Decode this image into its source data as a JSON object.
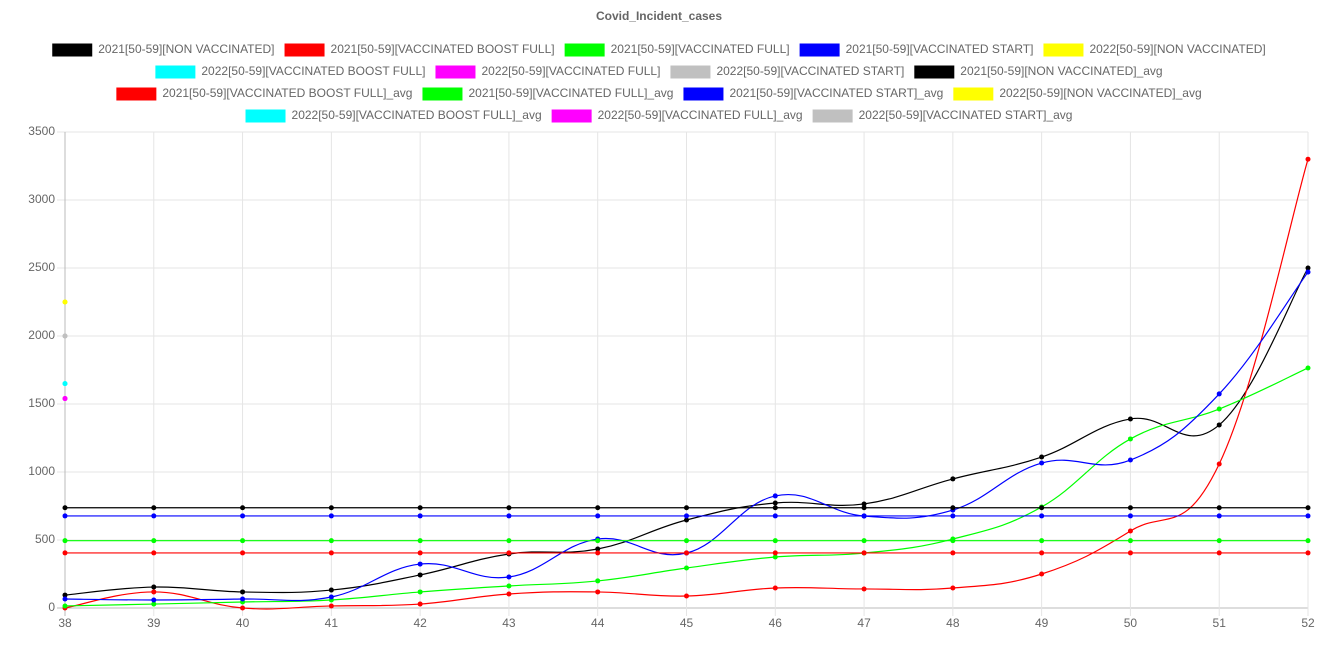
{
  "chart_data": {
    "type": "line",
    "title": "Covid_Incident_cases",
    "categories": [
      38,
      39,
      40,
      41,
      42,
      43,
      44,
      45,
      46,
      47,
      48,
      49,
      50,
      51,
      52
    ],
    "ylim": [
      0,
      3500
    ],
    "yticks": [
      0,
      500,
      1000,
      1500,
      2000,
      2500,
      3000,
      3500
    ],
    "grid": true,
    "legend": "top",
    "series": [
      {
        "name": "2021[50-59][NON VACCINATED]",
        "color": "#000000",
        "values": [
          95,
          154,
          118,
          132,
          243,
          397,
          434,
          647,
          772,
          765,
          949,
          1110,
          1390,
          1346,
          2500
        ]
      },
      {
        "name": "2021[50-59][VACCINATED BOOST FULL]",
        "color": "#ff0000",
        "values": [
          0,
          118,
          0,
          15,
          29,
          103,
          118,
          88,
          147,
          140,
          147,
          250,
          566,
          1059,
          3300
        ]
      },
      {
        "name": "2021[50-59][VACCINATED FULL]",
        "color": "#00ff00",
        "values": [
          15,
          29,
          44,
          59,
          118,
          162,
          199,
          294,
          375,
          404,
          507,
          743,
          1243,
          1463,
          1765
        ]
      },
      {
        "name": "2021[50-59][VACCINATED START]",
        "color": "#0000ff",
        "values": [
          66,
          59,
          66,
          81,
          323,
          228,
          507,
          404,
          824,
          676,
          720,
          1066,
          1088,
          1574,
          2470
        ]
      },
      {
        "name": "2022[50-59][NON VACCINATED]",
        "color": "#ffff00",
        "values": [
          2250,
          null,
          null,
          null,
          null,
          null,
          null,
          null,
          null,
          null,
          null,
          null,
          null,
          null,
          null
        ]
      },
      {
        "name": "2022[50-59][VACCINATED BOOST FULL]",
        "color": "#00ffff",
        "values": [
          1650,
          null,
          null,
          null,
          null,
          null,
          null,
          null,
          null,
          null,
          null,
          null,
          null,
          null,
          null
        ]
      },
      {
        "name": "2022[50-59][VACCINATED FULL]",
        "color": "#ff00ff",
        "values": [
          1540,
          null,
          null,
          null,
          null,
          null,
          null,
          null,
          null,
          null,
          null,
          null,
          null,
          null,
          null
        ]
      },
      {
        "name": "2022[50-59][VACCINATED START]",
        "color": "#c0c0c0",
        "values": [
          2000,
          null,
          null,
          null,
          null,
          null,
          null,
          null,
          null,
          null,
          null,
          null,
          null,
          null,
          null
        ]
      },
      {
        "name": "2021[50-59][NON VACCINATED]_avg",
        "color": "#000000",
        "values": [
          737,
          737,
          737,
          737,
          737,
          737,
          737,
          737,
          737,
          737,
          737,
          737,
          737,
          737,
          737
        ]
      },
      {
        "name": "2021[50-59][VACCINATED BOOST FULL]_avg",
        "color": "#ff0000",
        "values": [
          405,
          405,
          405,
          405,
          405,
          405,
          405,
          405,
          405,
          405,
          405,
          405,
          405,
          405,
          405
        ]
      },
      {
        "name": "2021[50-59][VACCINATED FULL]_avg",
        "color": "#00ff00",
        "values": [
          495,
          495,
          495,
          495,
          495,
          495,
          495,
          495,
          495,
          495,
          495,
          495,
          495,
          495,
          495
        ]
      },
      {
        "name": "2021[50-59][VACCINATED START]_avg",
        "color": "#0000ff",
        "values": [
          677,
          677,
          677,
          677,
          677,
          677,
          677,
          677,
          677,
          677,
          677,
          677,
          677,
          677,
          677
        ]
      },
      {
        "name": "2022[50-59][NON VACCINATED]_avg",
        "color": "#ffff00",
        "values": [
          2250,
          null,
          null,
          null,
          null,
          null,
          null,
          null,
          null,
          null,
          null,
          null,
          null,
          null,
          null
        ]
      },
      {
        "name": "2022[50-59][VACCINATED BOOST FULL]_avg",
        "color": "#00ffff",
        "values": [
          1650,
          null,
          null,
          null,
          null,
          null,
          null,
          null,
          null,
          null,
          null,
          null,
          null,
          null,
          null
        ]
      },
      {
        "name": "2022[50-59][VACCINATED FULL]_avg",
        "color": "#ff00ff",
        "values": [
          1540,
          null,
          null,
          null,
          null,
          null,
          null,
          null,
          null,
          null,
          null,
          null,
          null,
          null,
          null
        ]
      },
      {
        "name": "2022[50-59][VACCINATED START]_avg",
        "color": "#c0c0c0",
        "values": [
          2000,
          null,
          null,
          null,
          null,
          null,
          null,
          null,
          null,
          null,
          null,
          null,
          null,
          null,
          null
        ]
      }
    ]
  }
}
